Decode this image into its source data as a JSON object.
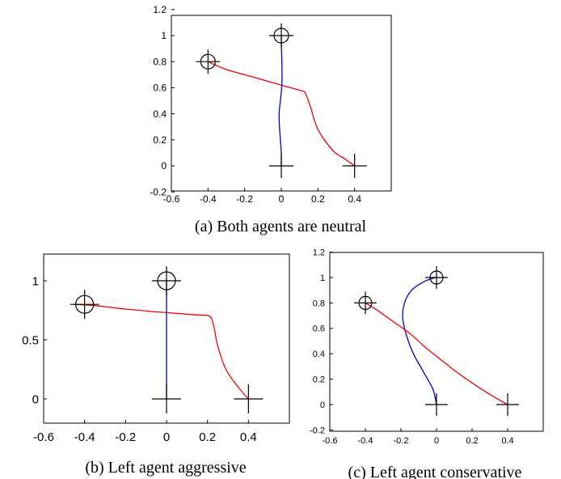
{
  "chart_data": [
    {
      "type": "line",
      "caption": "(a) Both agents are neutral",
      "xlim": [
        -0.6,
        0.6
      ],
      "ylim": [
        -0.2,
        1.2
      ],
      "xticks": [
        -0.6,
        -0.4,
        -0.2,
        0,
        0.2,
        0.4
      ],
      "yticks": [
        -0.2,
        0,
        0.2,
        0.4,
        0.6,
        0.8,
        1,
        1.2
      ],
      "xtick_labels": [
        "-0.6",
        "-0.4",
        "-0.2",
        "0",
        "0.2",
        "0.4"
      ],
      "ytick_labels": [
        "-0.2",
        "0",
        "0.2",
        "0.4",
        "0.6",
        "0.8",
        "1",
        "1.2"
      ],
      "series": [
        {
          "color": "#0000cc",
          "x": [
            0,
            0.0,
            -0.005,
            -0.01,
            -0.012,
            -0.005,
            0.002,
            0.004,
            0.003,
            0.001,
            0
          ],
          "y": [
            0,
            0.1,
            0.2,
            0.3,
            0.4,
            0.5,
            0.6,
            0.7,
            0.8,
            0.9,
            1.0
          ]
        },
        {
          "color": "#ee0000",
          "x": [
            0.4,
            0.35,
            0.28,
            0.2,
            0.16,
            0.13,
            0.1,
            0.0,
            -0.15,
            -0.3,
            -0.4
          ],
          "y": [
            0,
            0.05,
            0.12,
            0.28,
            0.45,
            0.56,
            0.58,
            0.62,
            0.68,
            0.74,
            0.8
          ]
        }
      ],
      "starts": [
        [
          0,
          0
        ],
        [
          0.4,
          0
        ]
      ],
      "goals": [
        [
          0,
          1
        ],
        [
          -0.4,
          0.8
        ]
      ]
    },
    {
      "type": "line",
      "caption": "(b) Left agent aggressive",
      "xlim": [
        -0.6,
        0.6
      ],
      "ylim": [
        -0.2,
        1.2
      ],
      "xticks": [
        -0.6,
        -0.4,
        -0.2,
        0,
        0.2,
        0.4
      ],
      "yticks": [
        0,
        0.5,
        1
      ],
      "xtick_labels": [
        "-0.6",
        "-0.4",
        "-0.2",
        "0",
        "0.2",
        "0.4"
      ],
      "ytick_labels": [
        "0",
        "0.5",
        "1"
      ],
      "series": [
        {
          "color": "#0000cc",
          "x": [
            0,
            0,
            0,
            0,
            0,
            0,
            0,
            0,
            0,
            0,
            0
          ],
          "y": [
            0,
            0.1,
            0.2,
            0.3,
            0.4,
            0.5,
            0.6,
            0.7,
            0.8,
            0.9,
            1.0
          ]
        },
        {
          "color": "#ee0000",
          "x": [
            0.4,
            0.35,
            0.29,
            0.25,
            0.23,
            0.21,
            0.15,
            0.0,
            -0.2,
            -0.35,
            -0.45
          ],
          "y": [
            0,
            0.1,
            0.25,
            0.45,
            0.62,
            0.7,
            0.71,
            0.73,
            0.76,
            0.79,
            0.8
          ]
        }
      ],
      "starts": [
        [
          0,
          0
        ],
        [
          0.4,
          0
        ]
      ],
      "goals": [
        [
          0,
          1
        ],
        [
          -0.4,
          0.8
        ]
      ]
    },
    {
      "type": "line",
      "caption": "(c) Left agent conservative",
      "xlim": [
        -0.6,
        0.6
      ],
      "ylim": [
        -0.2,
        1.2
      ],
      "xticks": [
        -0.6,
        -0.4,
        -0.2,
        0,
        0.2,
        0.4
      ],
      "yticks": [
        -0.2,
        0,
        0.2,
        0.4,
        0.6,
        0.8,
        1,
        1.2
      ],
      "xtick_labels": [
        "-0.6",
        "-0.4",
        "-0.2",
        "0",
        "0.2",
        "0.4"
      ],
      "ytick_labels": [
        "-0.2",
        "0",
        "0.2",
        "0.4",
        "0.6",
        "0.8",
        "1",
        "1.2"
      ],
      "series": [
        {
          "color": "#0000cc",
          "x": [
            0,
            -0.02,
            -0.07,
            -0.13,
            -0.17,
            -0.19,
            -0.18,
            -0.14,
            -0.08,
            -0.03,
            0
          ],
          "y": [
            0,
            0.12,
            0.25,
            0.4,
            0.55,
            0.68,
            0.8,
            0.9,
            0.96,
            0.99,
            1.0
          ]
        },
        {
          "color": "#ee0000",
          "x": [
            0.4,
            0.3,
            0.2,
            0.1,
            0.0,
            -0.07,
            -0.15,
            -0.25,
            -0.33,
            -0.4
          ],
          "y": [
            0,
            0.08,
            0.17,
            0.27,
            0.38,
            0.46,
            0.56,
            0.66,
            0.74,
            0.8
          ]
        }
      ],
      "starts": [
        [
          0,
          0
        ],
        [
          0.4,
          0
        ]
      ],
      "goals": [
        [
          0,
          1
        ],
        [
          -0.4,
          0.8
        ]
      ]
    }
  ]
}
